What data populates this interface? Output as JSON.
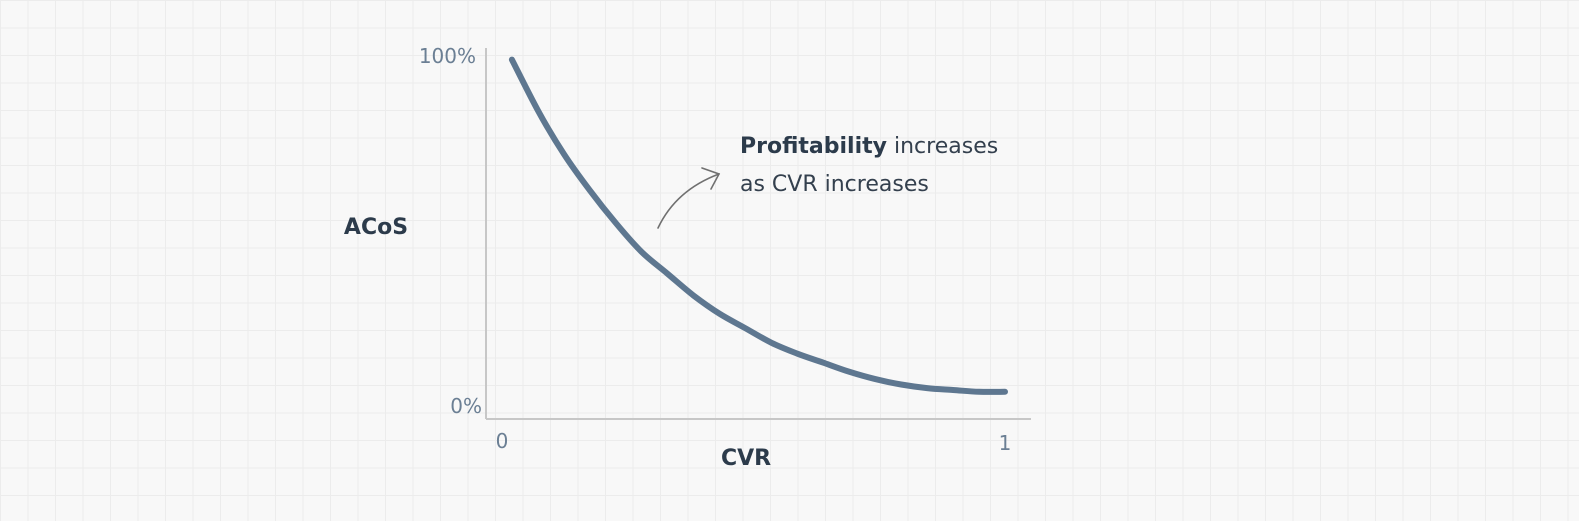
{
  "chart_data": {
    "type": "line",
    "title": "",
    "xlabel": "CVR",
    "ylabel": "ACoS",
    "xlim": [
      0,
      1
    ],
    "ylim": [
      0,
      1
    ],
    "x_tick_labels": [
      "0",
      "1"
    ],
    "y_tick_labels": [
      "0%",
      "100%"
    ],
    "grid": true,
    "colors": {
      "series": "#5e7790",
      "axis": "#c7c7c7",
      "arrow": "#707070",
      "background": "#f8f8f8"
    },
    "series": [
      {
        "x": [
          0.05,
          0.1,
          0.15,
          0.2,
          0.25,
          0.3,
          0.35,
          0.4,
          0.45,
          0.5,
          0.55,
          0.6,
          0.65,
          0.7,
          0.75,
          0.8,
          0.85,
          0.9,
          0.95,
          1.0
        ],
        "y": [
          0.99,
          0.85,
          0.73,
          0.63,
          0.54,
          0.46,
          0.4,
          0.34,
          0.29,
          0.25,
          0.21,
          0.18,
          0.155,
          0.13,
          0.11,
          0.095,
          0.085,
          0.08,
          0.075,
          0.075
        ]
      }
    ],
    "annotations": [
      {
        "bold": "Profitability",
        "text_line1": "increases",
        "text_line2": "as CVR increases",
        "arrow": "curved-up-right"
      }
    ]
  }
}
